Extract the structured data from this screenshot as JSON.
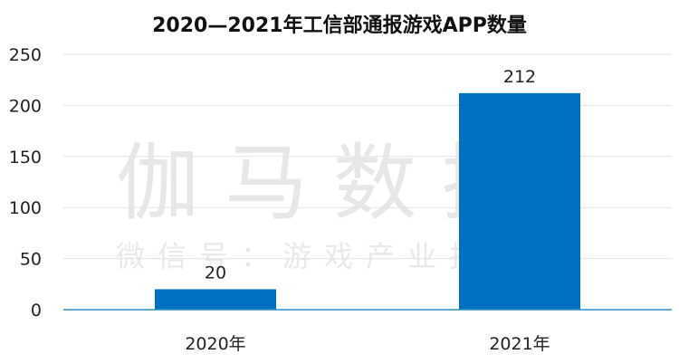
{
  "chart_data": {
    "type": "bar",
    "title": "2020—2021年工信部通报游戏APP数量",
    "categories": [
      "2020年",
      "2021年"
    ],
    "values": [
      20,
      212
    ],
    "ylim": [
      0,
      250
    ],
    "yticks": [
      0,
      50,
      100,
      150,
      200,
      250
    ],
    "grid": true,
    "bar_color": "#0070c0",
    "data_labels": [
      "20",
      "212"
    ]
  },
  "watermark": {
    "main": "伽马数据",
    "sub": "微信号：游戏产业报告"
  }
}
